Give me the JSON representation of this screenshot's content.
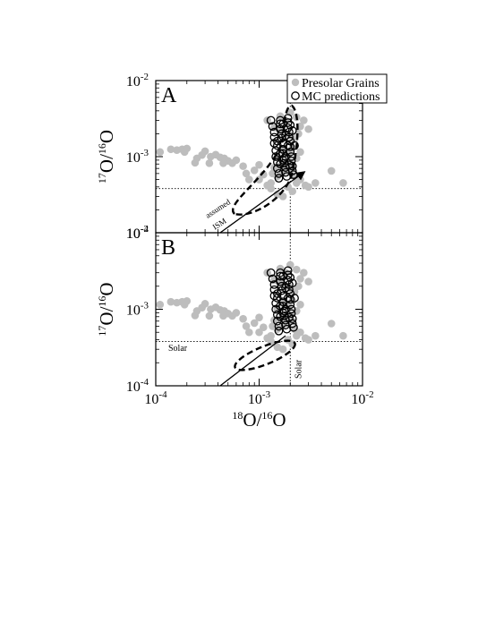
{
  "chart_data": [
    {
      "type": "scatter",
      "panel_label": "A",
      "xscale": "log",
      "yscale": "log",
      "xlim": [
        0.0001,
        0.01
      ],
      "ylim": [
        0.0001,
        0.01
      ],
      "xticks": [
        0.0001,
        0.001,
        0.01
      ],
      "yticks": [
        0.0001,
        0.001,
        0.01
      ],
      "ylabel": "17O/16O",
      "legend": {
        "position": "top-right",
        "entries": [
          "Presolar Grains",
          "MC predictions"
        ]
      },
      "annotations": [
        "assumed",
        "ISM"
      ],
      "solar": {
        "x": 0.002,
        "y": 0.00038
      },
      "series": [
        {
          "name": "Presolar Grains",
          "marker": "filled-circle",
          "color": "#bdbdbd",
          "points": [
            [
              0.00011,
              0.00115
            ],
            [
              0.00014,
              0.00125
            ],
            [
              0.00016,
              0.00122
            ],
            [
              0.00018,
              0.00125
            ],
            [
              0.0002,
              0.00128
            ],
            [
              0.00019,
              0.00115
            ],
            [
              0.00025,
              0.00095
            ],
            [
              0.00028,
              0.00105
            ],
            [
              0.0003,
              0.00118
            ],
            [
              0.00034,
              0.001
            ],
            [
              0.00038,
              0.00106
            ],
            [
              0.00042,
              0.00098
            ],
            [
              0.00046,
              0.00095
            ],
            [
              0.0005,
              0.00088
            ],
            [
              0.00055,
              0.00082
            ],
            [
              0.0006,
              0.0009
            ],
            [
              0.00024,
              0.00083
            ],
            [
              0.00033,
              0.00082
            ],
            [
              0.00045,
              0.00082
            ],
            [
              0.0007,
              0.00075
            ],
            [
              0.00075,
              0.0006
            ],
            [
              0.0008,
              0.0005
            ],
            [
              0.0009,
              0.00066
            ],
            [
              0.001,
              0.00078
            ],
            [
              0.0011,
              0.00058
            ],
            [
              0.0012,
              0.00042
            ],
            [
              0.0013,
              0.00045
            ],
            [
              0.00135,
              0.0006
            ],
            [
              0.0014,
              0.00072
            ],
            [
              0.0015,
              0.00055
            ],
            [
              0.0016,
              0.00075
            ],
            [
              0.0017,
              0.00062
            ],
            [
              0.0018,
              0.0008
            ],
            [
              0.0019,
              0.00065
            ],
            [
              0.002,
              0.00085
            ],
            [
              0.0021,
              0.0007
            ],
            [
              0.0022,
              0.00055
            ],
            [
              0.0023,
              0.00045
            ],
            [
              0.0025,
              0.0005
            ],
            [
              0.0028,
              0.00042
            ],
            [
              0.003,
              0.0004
            ],
            [
              0.0035,
              0.00045
            ],
            [
              0.005,
              0.00065
            ],
            [
              0.0065,
              0.00045
            ],
            [
              0.0016,
              0.0034
            ],
            [
              0.0018,
              0.003
            ],
            [
              0.002,
              0.0038
            ],
            [
              0.0023,
              0.0033
            ],
            [
              0.0025,
              0.0025
            ],
            [
              0.0027,
              0.003
            ],
            [
              0.003,
              0.0023
            ],
            [
              0.0012,
              0.003
            ],
            [
              0.0014,
              0.0024
            ],
            [
              0.0016,
              0.0022
            ],
            [
              0.0018,
              0.002
            ],
            [
              0.002,
              0.0019
            ],
            [
              0.0022,
              0.0017
            ],
            [
              0.0024,
              0.002
            ],
            [
              0.0015,
              0.001
            ],
            [
              0.0017,
              0.0012
            ],
            [
              0.0019,
              0.0011
            ],
            [
              0.0021,
              0.0013
            ],
            [
              0.0023,
              0.00095
            ],
            [
              0.0025,
              0.00115
            ],
            [
              0.001,
              0.0005
            ],
            [
              0.0013,
              0.00038
            ],
            [
              0.0015,
              0.00032
            ],
            [
              0.0017,
              0.0003
            ],
            [
              0.0019,
              0.0004
            ],
            [
              0.0021,
              0.00035
            ]
          ]
        },
        {
          "name": "MC predictions",
          "marker": "open-circle",
          "color": "#000000",
          "points": [
            [
              0.0013,
              0.003
            ],
            [
              0.00135,
              0.0025
            ],
            [
              0.0014,
              0.0021
            ],
            [
              0.0014,
              0.0018
            ],
            [
              0.0014,
              0.0015
            ],
            [
              0.00145,
              0.0012
            ],
            [
              0.00145,
              0.001
            ],
            [
              0.0015,
              0.00085
            ],
            [
              0.0015,
              0.0007
            ],
            [
              0.00155,
              0.0006
            ],
            [
              0.00155,
              0.00052
            ],
            [
              0.0016,
              0.003
            ],
            [
              0.0016,
              0.0027
            ],
            [
              0.0016,
              0.0023
            ],
            [
              0.00165,
              0.002
            ],
            [
              0.00165,
              0.00175
            ],
            [
              0.0017,
              0.0015
            ],
            [
              0.0017,
              0.00125
            ],
            [
              0.0017,
              0.0011
            ],
            [
              0.00175,
              0.00095
            ],
            [
              0.00175,
              0.00082
            ],
            [
              0.0018,
              0.00072
            ],
            [
              0.0018,
              0.00062
            ],
            [
              0.00185,
              0.00055
            ],
            [
              0.0019,
              0.0032
            ],
            [
              0.0019,
              0.0028
            ],
            [
              0.0019,
              0.0024
            ],
            [
              0.00195,
              0.0021
            ],
            [
              0.00195,
              0.0018
            ],
            [
              0.002,
              0.0016
            ],
            [
              0.002,
              0.00135
            ],
            [
              0.002,
              0.00115
            ],
            [
              0.00205,
              0.001
            ],
            [
              0.00205,
              0.00088
            ],
            [
              0.0021,
              0.00075
            ],
            [
              0.0021,
              0.00065
            ],
            [
              0.00215,
              0.00058
            ],
            [
              0.0015,
              0.0016
            ],
            [
              0.0018,
              0.0019
            ],
            [
              0.0021,
              0.0022
            ],
            [
              0.0017,
              0.0027
            ],
            [
              0.0015,
              0.0014
            ],
            [
              0.002,
              0.0026
            ],
            [
              0.0022,
              0.0014
            ],
            [
              0.0016,
              0.0011
            ],
            [
              0.0018,
              0.001
            ],
            [
              0.0019,
              0.0014
            ],
            [
              0.0016,
              0.0008
            ],
            [
              0.0017,
              0.0009
            ],
            [
              0.00195,
              0.00078
            ]
          ]
        }
      ],
      "lines": [
        {
          "style": "solid-arrow",
          "x": [
            0.00042,
            0.0027
          ],
          "y": [
            0.0001,
            0.00062
          ]
        },
        {
          "style": "dashed-ellipse",
          "region": "oval around the MC predictions"
        }
      ]
    },
    {
      "type": "scatter",
      "panel_label": "B",
      "xscale": "log",
      "yscale": "log",
      "xlim": [
        0.0001,
        0.01
      ],
      "ylim": [
        0.0001,
        0.01
      ],
      "xticks": [
        0.0001,
        0.001,
        0.01
      ],
      "yticks": [
        0.0001,
        0.001,
        0.01
      ],
      "xlabel": "18O/16O",
      "ylabel": "17O/16O",
      "annotations": [
        "Solar",
        "Solar"
      ],
      "solar": {
        "x": 0.002,
        "y": 0.00038
      },
      "series": [
        {
          "name": "Presolar Grains",
          "marker": "filled-circle",
          "color": "#bdbdbd",
          "points": [
            [
              0.00011,
              0.00115
            ],
            [
              0.00014,
              0.00125
            ],
            [
              0.00016,
              0.00122
            ],
            [
              0.00018,
              0.00125
            ],
            [
              0.0002,
              0.00128
            ],
            [
              0.00019,
              0.00115
            ],
            [
              0.00025,
              0.00095
            ],
            [
              0.00028,
              0.00105
            ],
            [
              0.0003,
              0.00118
            ],
            [
              0.00034,
              0.001
            ],
            [
              0.00038,
              0.00106
            ],
            [
              0.00042,
              0.00098
            ],
            [
              0.00046,
              0.00095
            ],
            [
              0.0005,
              0.00088
            ],
            [
              0.00055,
              0.00082
            ],
            [
              0.0006,
              0.0009
            ],
            [
              0.00024,
              0.00083
            ],
            [
              0.00033,
              0.00082
            ],
            [
              0.00045,
              0.00082
            ],
            [
              0.0007,
              0.00075
            ],
            [
              0.00075,
              0.0006
            ],
            [
              0.0008,
              0.0005
            ],
            [
              0.0009,
              0.00066
            ],
            [
              0.001,
              0.00078
            ],
            [
              0.0011,
              0.00058
            ],
            [
              0.0012,
              0.00042
            ],
            [
              0.0013,
              0.00045
            ],
            [
              0.00135,
              0.0006
            ],
            [
              0.0014,
              0.00072
            ],
            [
              0.0015,
              0.00055
            ],
            [
              0.0016,
              0.00075
            ],
            [
              0.0017,
              0.00062
            ],
            [
              0.0018,
              0.0008
            ],
            [
              0.0019,
              0.00065
            ],
            [
              0.002,
              0.00085
            ],
            [
              0.0021,
              0.0007
            ],
            [
              0.0022,
              0.00055
            ],
            [
              0.0023,
              0.00045
            ],
            [
              0.0025,
              0.0005
            ],
            [
              0.0028,
              0.00042
            ],
            [
              0.003,
              0.0004
            ],
            [
              0.0035,
              0.00045
            ],
            [
              0.005,
              0.00065
            ],
            [
              0.0065,
              0.00045
            ],
            [
              0.0016,
              0.0034
            ],
            [
              0.0018,
              0.003
            ],
            [
              0.002,
              0.0038
            ],
            [
              0.0023,
              0.0033
            ],
            [
              0.0025,
              0.0025
            ],
            [
              0.0027,
              0.003
            ],
            [
              0.003,
              0.0023
            ],
            [
              0.0012,
              0.003
            ],
            [
              0.0014,
              0.0024
            ],
            [
              0.0016,
              0.0022
            ],
            [
              0.0018,
              0.002
            ],
            [
              0.002,
              0.0019
            ],
            [
              0.0022,
              0.0017
            ],
            [
              0.0024,
              0.002
            ],
            [
              0.0015,
              0.001
            ],
            [
              0.0017,
              0.0012
            ],
            [
              0.0019,
              0.0011
            ],
            [
              0.0021,
              0.0013
            ],
            [
              0.0023,
              0.00095
            ],
            [
              0.0025,
              0.00115
            ],
            [
              0.001,
              0.0005
            ],
            [
              0.0013,
              0.00038
            ],
            [
              0.0015,
              0.00032
            ],
            [
              0.0017,
              0.0003
            ],
            [
              0.0019,
              0.0004
            ],
            [
              0.0021,
              0.00035
            ]
          ]
        },
        {
          "name": "MC predictions",
          "marker": "open-circle",
          "color": "#000000",
          "points": [
            [
              0.0013,
              0.003
            ],
            [
              0.00135,
              0.0025
            ],
            [
              0.0014,
              0.0021
            ],
            [
              0.0014,
              0.0018
            ],
            [
              0.0014,
              0.0015
            ],
            [
              0.00145,
              0.0012
            ],
            [
              0.00145,
              0.001
            ],
            [
              0.0015,
              0.00085
            ],
            [
              0.0015,
              0.0007
            ],
            [
              0.00155,
              0.0006
            ],
            [
              0.00155,
              0.00052
            ],
            [
              0.0016,
              0.003
            ],
            [
              0.0016,
              0.0027
            ],
            [
              0.0016,
              0.0023
            ],
            [
              0.00165,
              0.002
            ],
            [
              0.00165,
              0.00175
            ],
            [
              0.0017,
              0.0015
            ],
            [
              0.0017,
              0.00125
            ],
            [
              0.0017,
              0.0011
            ],
            [
              0.00175,
              0.00095
            ],
            [
              0.00175,
              0.00082
            ],
            [
              0.0018,
              0.00072
            ],
            [
              0.0018,
              0.00062
            ],
            [
              0.00185,
              0.00055
            ],
            [
              0.0019,
              0.0032
            ],
            [
              0.0019,
              0.0028
            ],
            [
              0.0019,
              0.0024
            ],
            [
              0.00195,
              0.0021
            ],
            [
              0.00195,
              0.0018
            ],
            [
              0.002,
              0.0016
            ],
            [
              0.002,
              0.00135
            ],
            [
              0.002,
              0.00115
            ],
            [
              0.00205,
              0.001
            ],
            [
              0.00205,
              0.00088
            ],
            [
              0.0021,
              0.00075
            ],
            [
              0.0021,
              0.00065
            ],
            [
              0.00215,
              0.00058
            ],
            [
              0.0015,
              0.0016
            ],
            [
              0.0018,
              0.0019
            ],
            [
              0.0021,
              0.0022
            ],
            [
              0.0017,
              0.0027
            ],
            [
              0.0015,
              0.0014
            ],
            [
              0.002,
              0.0026
            ],
            [
              0.0022,
              0.0014
            ],
            [
              0.0016,
              0.0011
            ],
            [
              0.0018,
              0.001
            ],
            [
              0.0019,
              0.0014
            ],
            [
              0.0016,
              0.0008
            ],
            [
              0.0017,
              0.0009
            ],
            [
              0.00195,
              0.00078
            ]
          ]
        }
      ],
      "lines": [
        {
          "style": "solid",
          "x": [
            0.00042,
            0.0018
          ],
          "y": [
            0.0001,
            0.00045
          ]
        },
        {
          "style": "dashed-ellipse",
          "region": "small oval near solar, below MC cluster"
        }
      ]
    }
  ]
}
